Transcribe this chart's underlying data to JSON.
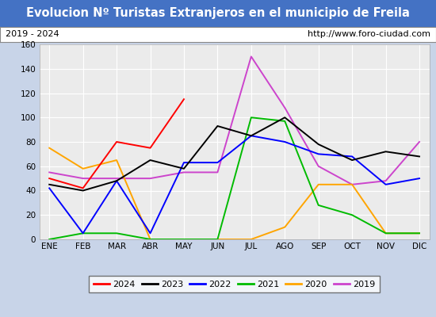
{
  "title": "Evolucion Nº Turistas Extranjeros en el municipio de Freila",
  "subtitle_left": "2019 - 2024",
  "subtitle_right": "http://www.foro-ciudad.com",
  "months": [
    "ENE",
    "FEB",
    "MAR",
    "ABR",
    "MAY",
    "JUN",
    "JUL",
    "AGO",
    "SEP",
    "OCT",
    "NOV",
    "DIC"
  ],
  "ylim": [
    0,
    160
  ],
  "yticks": [
    0,
    20,
    40,
    60,
    80,
    100,
    120,
    140,
    160
  ],
  "series": {
    "2024": {
      "color": "#ff0000",
      "values": [
        50,
        42,
        80,
        75,
        115,
        null,
        null,
        null,
        null,
        null,
        null,
        null
      ]
    },
    "2023": {
      "color": "#000000",
      "values": [
        45,
        40,
        48,
        65,
        58,
        93,
        85,
        100,
        78,
        65,
        72,
        68
      ]
    },
    "2022": {
      "color": "#0000ff",
      "values": [
        42,
        5,
        48,
        5,
        63,
        63,
        85,
        80,
        70,
        68,
        45,
        50
      ]
    },
    "2021": {
      "color": "#00bb00",
      "values": [
        0,
        5,
        5,
        0,
        0,
        0,
        100,
        97,
        28,
        20,
        5,
        5
      ]
    },
    "2020": {
      "color": "#ffa500",
      "values": [
        75,
        58,
        65,
        0,
        0,
        0,
        0,
        10,
        45,
        45,
        5,
        5
      ]
    },
    "2019": {
      "color": "#cc44cc",
      "values": [
        55,
        50,
        50,
        50,
        55,
        55,
        150,
        108,
        60,
        45,
        48,
        80
      ]
    }
  },
  "title_bg_color": "#4472c4",
  "title_font_color": "#ffffff",
  "plot_bg_color": "#ebebeb",
  "grid_color": "#ffffff",
  "fig_bg_color": "#c8d4e8",
  "subtitle_box_color": "#ffffff",
  "subtitle_border_color": "#888888"
}
